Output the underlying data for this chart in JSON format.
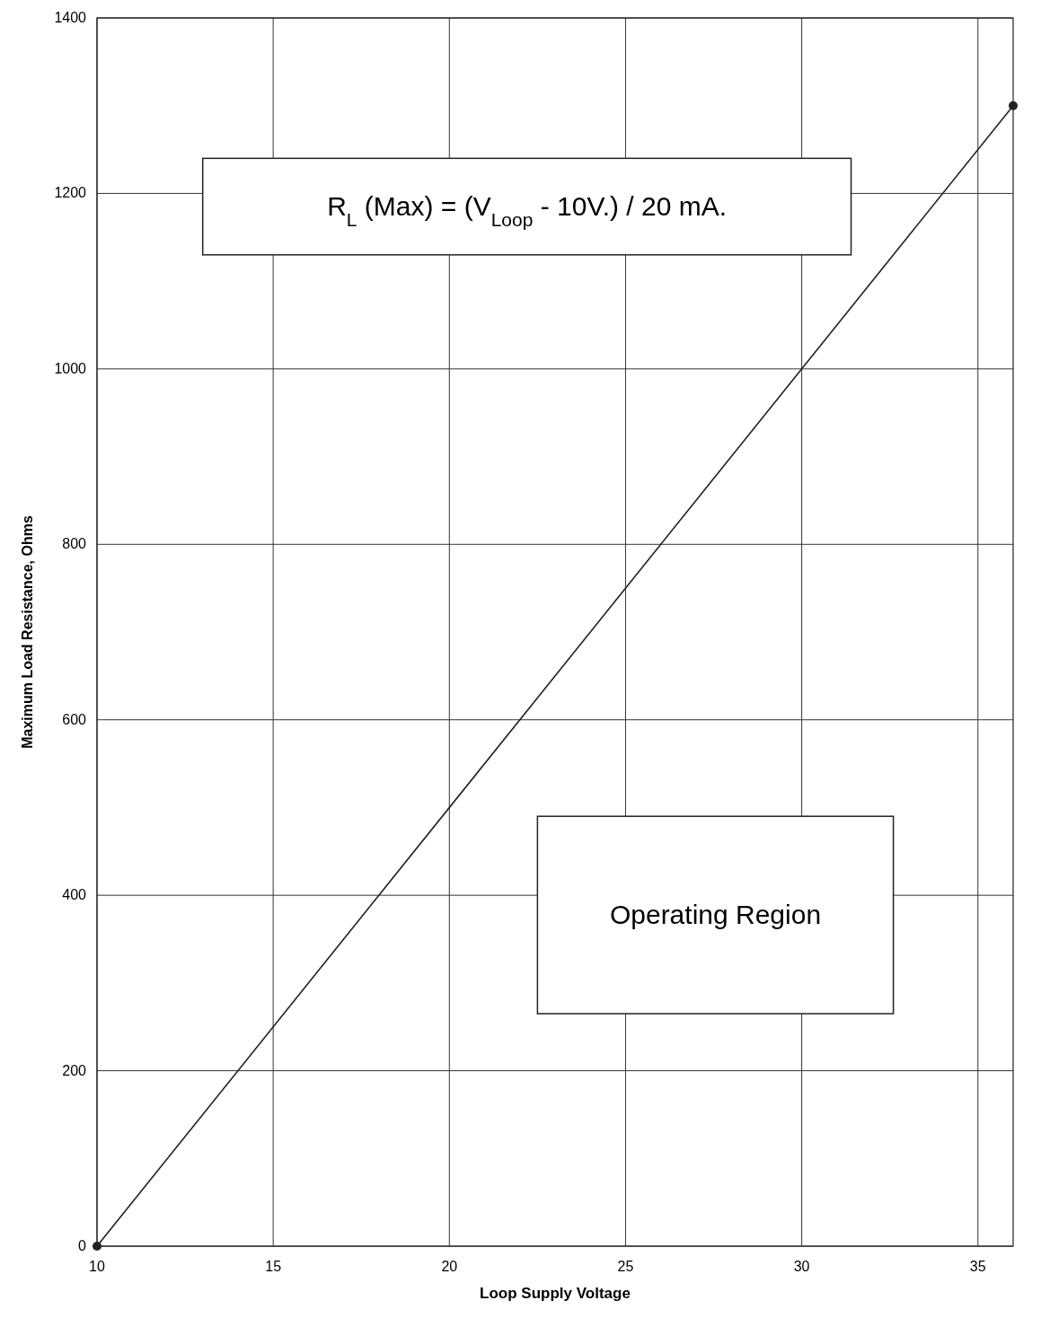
{
  "chart_data": {
    "type": "line",
    "xlabel": "Loop Supply Voltage",
    "ylabel": "Maximum Load Resistance, Ohms",
    "x": [
      10,
      36
    ],
    "series": [
      {
        "color": "#222222",
        "values": [
          0,
          1300
        ]
      }
    ],
    "xlim": [
      10,
      36
    ],
    "xticks": [
      10,
      15,
      20,
      25,
      30,
      35
    ],
    "ylim": [
      0,
      1400
    ],
    "yticks": [
      0,
      200,
      400,
      600,
      800,
      1000,
      1200,
      1400
    ],
    "grid": true,
    "marker": "circle",
    "line_style": "solid",
    "annotations": [
      "R$_{L}$ (Max) = (V$_{Loop}$ - 10V.) / 20 mA.",
      "Operating Region"
    ]
  }
}
